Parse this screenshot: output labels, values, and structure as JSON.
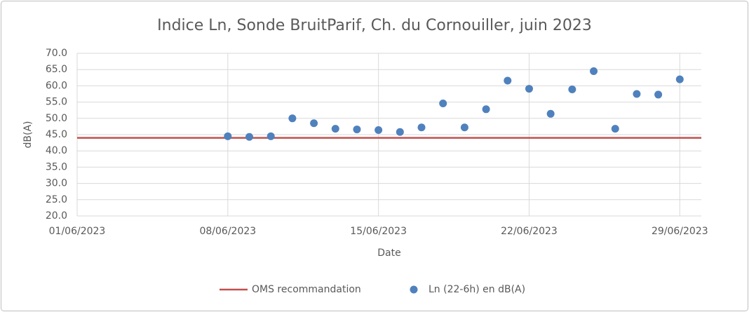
{
  "chart_data": {
    "type": "scatter",
    "title": "Indice Ln, Sonde BruitParif, Ch. du Cornouiller, juin 2023",
    "x_label": "Date",
    "y_label": "dB(A)",
    "xlim": [
      "01/06/2023",
      "30/06/2023"
    ],
    "xticks": [
      "01/06/2023",
      "08/06/2023",
      "15/06/2023",
      "22/06/2023",
      "29/06/2023"
    ],
    "ylim": [
      20,
      70
    ],
    "yticks": [
      {
        "value": 20,
        "label": "20.0"
      },
      {
        "value": 25,
        "label": "25.0"
      },
      {
        "value": 30,
        "label": "30.0"
      },
      {
        "value": 35,
        "label": "35.0"
      },
      {
        "value": 40,
        "label": "40.0"
      },
      {
        "value": 45,
        "label": "45.0"
      },
      {
        "value": 50,
        "label": "50.0"
      },
      {
        "value": 55,
        "label": "55.0"
      },
      {
        "value": 60,
        "label": "60.0"
      },
      {
        "value": 65,
        "label": "65.0"
      },
      {
        "value": 70,
        "label": "70.0"
      }
    ],
    "grid": true,
    "legend": "bottom",
    "series": [
      {
        "name": "OMS recommandation",
        "color": "#c0504d",
        "mode": "line",
        "x": [
          "01/06/2023",
          "30/06/2023"
        ],
        "values": [
          44,
          44
        ]
      },
      {
        "name": "Ln  (22-6h) en dB(A)",
        "color": "#4f81bd",
        "mode": "markers",
        "x": [
          "08/06/2023",
          "09/06/2023",
          "10/06/2023",
          "11/06/2023",
          "12/06/2023",
          "13/06/2023",
          "14/06/2023",
          "15/06/2023",
          "16/06/2023",
          "17/06/2023",
          "18/06/2023",
          "19/06/2023",
          "20/06/2023",
          "21/06/2023",
          "22/06/2023",
          "23/06/2023",
          "24/06/2023",
          "25/06/2023",
          "26/06/2023",
          "27/06/2023",
          "28/06/2023",
          "29/06/2023"
        ],
        "values": [
          44.5,
          44.3,
          44.5,
          50.0,
          48.5,
          46.8,
          46.6,
          46.4,
          45.8,
          47.2,
          54.6,
          47.2,
          52.8,
          61.6,
          59.1,
          51.4,
          58.9,
          64.5,
          46.8,
          57.5,
          57.3,
          62.0
        ]
      }
    ]
  }
}
